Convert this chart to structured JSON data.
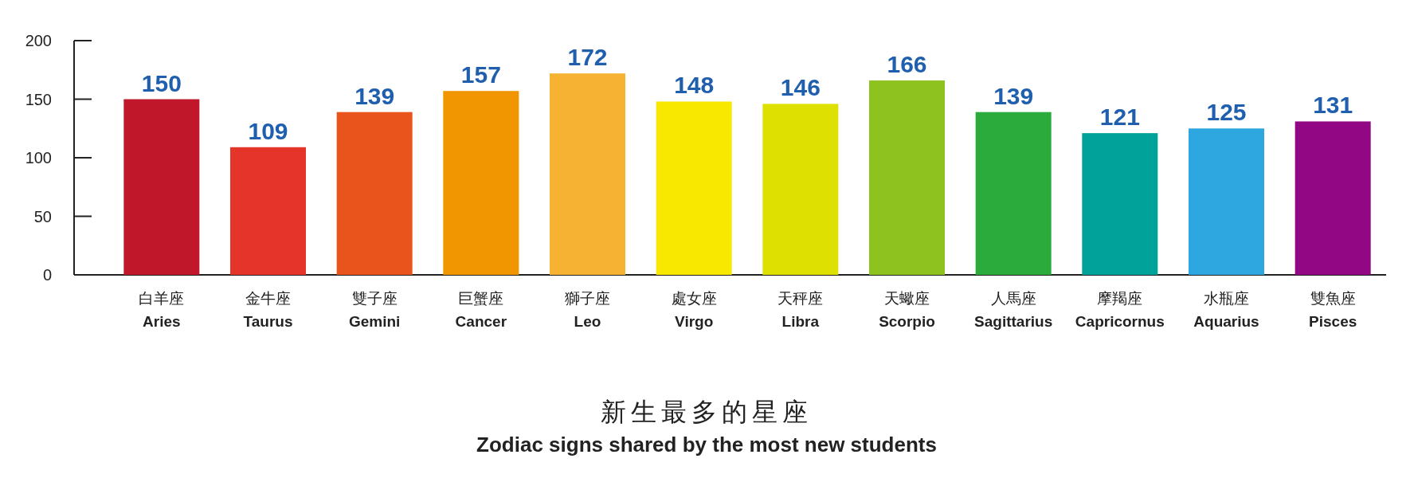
{
  "chart_data": {
    "type": "bar",
    "title": "新生最多的星座",
    "subtitle": "Zodiac signs shared by the most new students",
    "categories": [
      "白羊座\nAries",
      "金牛座\nTaurus",
      "雙子座\nGemini",
      "巨蟹座\nCancer",
      "獅子座\nLeo",
      "處女座\nVirgo",
      "天秤座\nLibra",
      "天蠍座\nScorpio",
      "人馬座\nSagittarius",
      "摩羯座\nCapricornus",
      "水瓶座\nAquarius",
      "雙魚座\nPisces"
    ],
    "values": [
      150,
      109,
      139,
      157,
      172,
      148,
      146,
      166,
      139,
      121,
      125,
      131
    ],
    "colors": [
      "#c0182a",
      "#e5352b",
      "#e9541d",
      "#f19600",
      "#f6b233",
      "#f8e800",
      "#dde000",
      "#8dc21f",
      "#2aab3c",
      "#00a29a",
      "#2ea7e0",
      "#920783"
    ],
    "ylim": [
      0,
      200
    ],
    "yticks": [
      0,
      50,
      100,
      150,
      200
    ],
    "data_labels": true
  }
}
